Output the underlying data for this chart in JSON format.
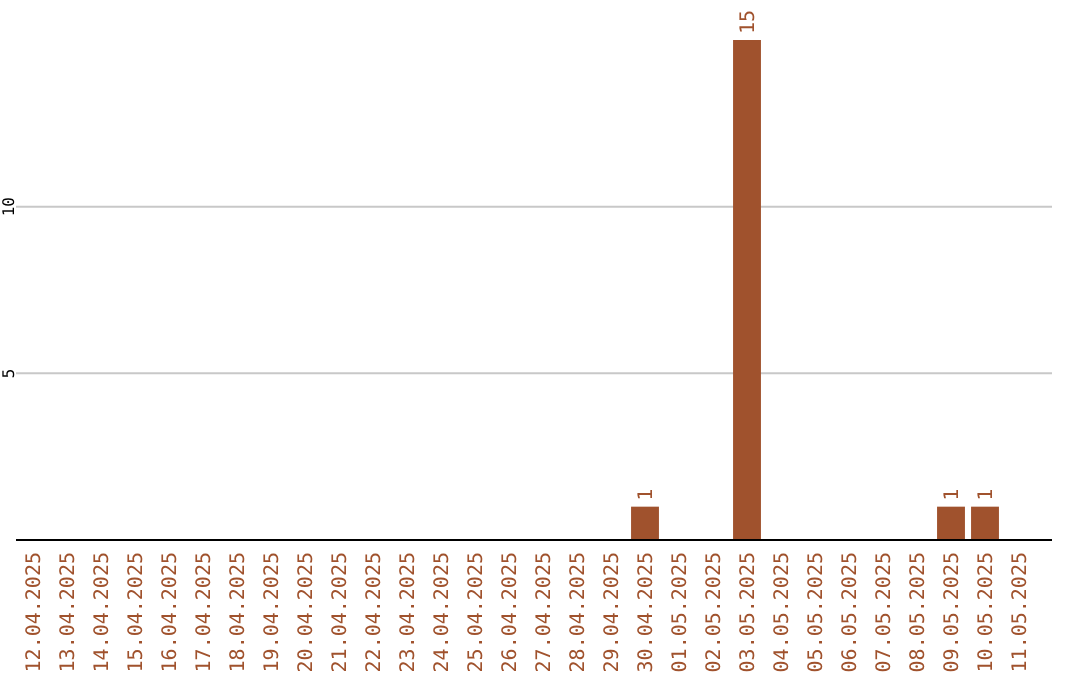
{
  "chart_data": {
    "type": "bar",
    "categories": [
      "12.04.2025",
      "13.04.2025",
      "14.04.2025",
      "15.04.2025",
      "16.04.2025",
      "17.04.2025",
      "18.04.2025",
      "19.04.2025",
      "20.04.2025",
      "21.04.2025",
      "22.04.2025",
      "23.04.2025",
      "24.04.2025",
      "25.04.2025",
      "26.04.2025",
      "27.04.2025",
      "28.04.2025",
      "29.04.2025",
      "30.04.2025",
      "01.05.2025",
      "02.05.2025",
      "03.05.2025",
      "04.05.2025",
      "05.05.2025",
      "06.05.2025",
      "07.05.2025",
      "08.05.2025",
      "09.05.2025",
      "10.05.2025",
      "11.05.2025"
    ],
    "values": [
      0,
      0,
      0,
      0,
      0,
      0,
      0,
      0,
      0,
      0,
      0,
      0,
      0,
      0,
      0,
      0,
      0,
      0,
      1,
      0,
      0,
      15,
      0,
      0,
      0,
      0,
      0,
      1,
      1,
      0
    ],
    "value_labels": [
      null,
      null,
      null,
      null,
      null,
      null,
      null,
      null,
      null,
      null,
      null,
      null,
      null,
      null,
      null,
      null,
      null,
      null,
      "1",
      null,
      null,
      "15",
      null,
      null,
      null,
      null,
      null,
      "1",
      "1",
      null
    ],
    "color": "#a0522d",
    "ylim": [
      0,
      15
    ],
    "yticks": [
      5,
      10
    ],
    "grid": "y"
  }
}
